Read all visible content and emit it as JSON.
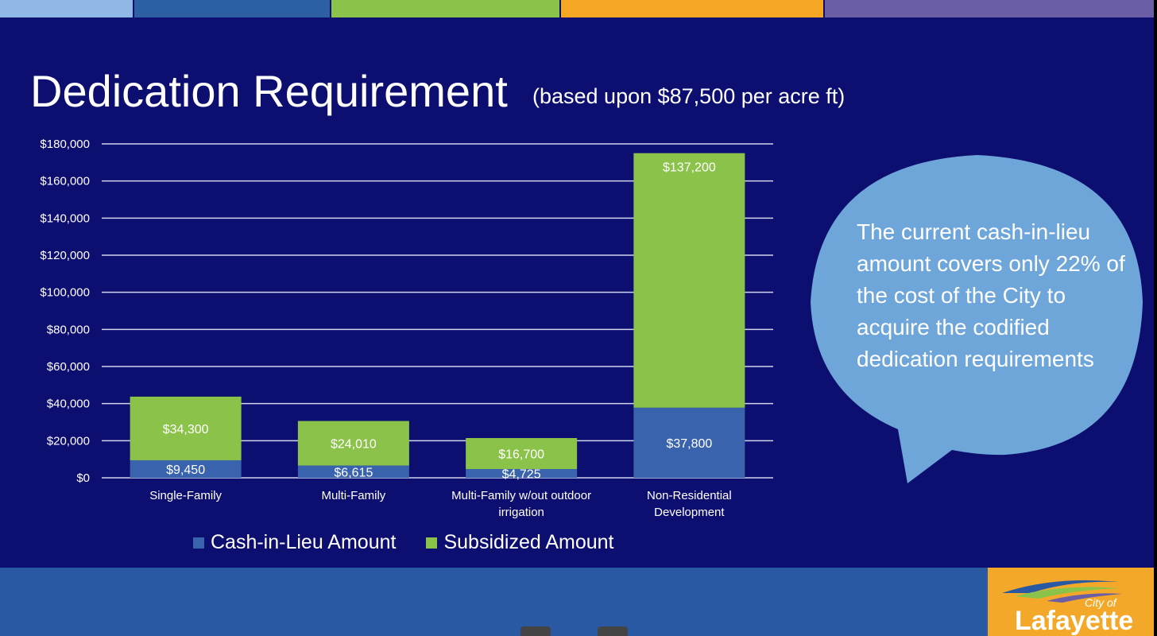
{
  "slide": {
    "title": "Dedication Requirement",
    "subtitle": "(based upon $87,500 per acre ft)"
  },
  "callout": {
    "text": "The current cash-in-lieu amount covers only 22% of the cost of the City to acquire the codified dedication requirements"
  },
  "logo": {
    "line1": "City of",
    "line2": "Lafayette"
  },
  "colors": {
    "background": "#0d0f70",
    "cash_in_lieu": "#3a63ad",
    "subsidized": "#8bc34a",
    "callout": "#6fa6da",
    "footer": "#2a59a3",
    "logo_background": "#f4a82a"
  },
  "chart_data": {
    "type": "bar",
    "stacked": true,
    "categories": [
      "Single-Family",
      "Multi-Family",
      "Multi-Family w/out outdoor irrigation",
      "Non-Residential Development"
    ],
    "category_lines": [
      [
        "Single-Family"
      ],
      [
        "Multi-Family"
      ],
      [
        "Multi-Family w/out outdoor",
        "irrigation"
      ],
      [
        "Non-Residential",
        "Development"
      ]
    ],
    "series": [
      {
        "name": "Cash-in-Lieu Amount",
        "color": "#3a63ad",
        "values": [
          9450,
          6615,
          4725,
          37800
        ],
        "labels": [
          "$9,450",
          "$6,615",
          "$4,725",
          "$37,800"
        ]
      },
      {
        "name": "Subsidized Amount",
        "color": "#8bc34a",
        "values": [
          34300,
          24010,
          16700,
          137200
        ],
        "labels": [
          "$34,300",
          "$24,010",
          "$16,700",
          "$137,200"
        ]
      }
    ],
    "ylim": [
      0,
      180000
    ],
    "yticks": [
      0,
      20000,
      40000,
      60000,
      80000,
      100000,
      120000,
      140000,
      160000,
      180000
    ],
    "ytick_labels": [
      "$0",
      "$20,000",
      "$40,000",
      "$60,000",
      "$80,000",
      "$100,000",
      "$120,000",
      "$140,000",
      "$160,000",
      "$180,000"
    ],
    "grid": true,
    "legend_position": "bottom"
  }
}
